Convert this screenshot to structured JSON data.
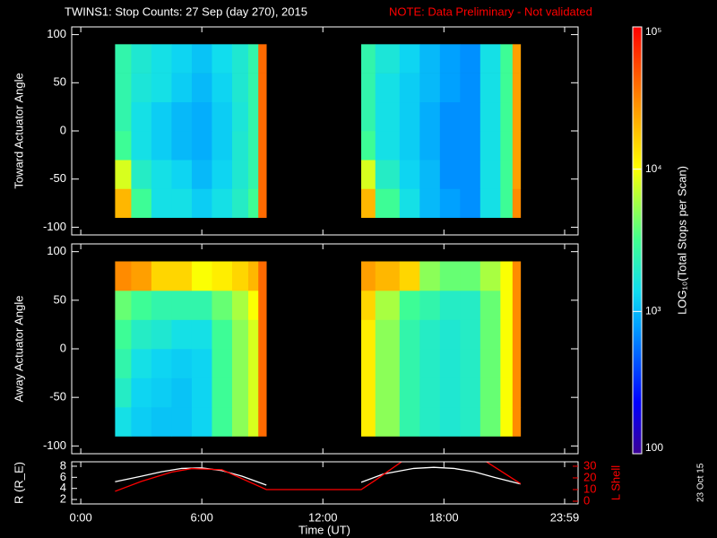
{
  "header": {
    "title": "TWINS1: Stop Counts: 27 Sep (day 270), 2015",
    "note": "NOTE: Data Preliminary - Not validated",
    "date_stamp": "23 Oct 15"
  },
  "x_axis": {
    "label": "Time (UT)",
    "xlim": [
      -0.45,
      24.65
    ],
    "xticks": [
      {
        "value": 0,
        "label": "0:00"
      },
      {
        "value": 6,
        "label": "6:00"
      },
      {
        "value": 12,
        "label": "12:00"
      },
      {
        "value": 18,
        "label": "18:00"
      },
      {
        "value": 23.983,
        "label": "23:59"
      }
    ]
  },
  "colorbar": {
    "label": "LOG₁₀(Total Stops per Scan)",
    "log": true,
    "zlim": [
      100,
      100000
    ],
    "ticks": [
      {
        "value": 100000,
        "label": "10⁵"
      },
      {
        "value": 10000,
        "label": "10⁴"
      },
      {
        "value": 1000,
        "label": "10³"
      },
      100
    ]
  },
  "chart_data": [
    {
      "type": "heatmap",
      "ylabel": "Toward Actuator Angle",
      "ylim": [
        -108,
        108
      ],
      "yticks": [
        100,
        50,
        0,
        -50,
        -100
      ],
      "x_bins": [
        1.7,
        2.5,
        3.5,
        4.5,
        5.5,
        6.5,
        7.5,
        8.3,
        8.8,
        9.2,
        13.9,
        14.6,
        15.8,
        16.8,
        17.8,
        18.8,
        19.8,
        20.8,
        21.4,
        21.8
      ],
      "y_bins": [
        -90,
        -60,
        -30,
        0,
        30,
        60,
        90
      ],
      "z": [
        [
          20000,
          3000,
          1500,
          1500,
          1200,
          1500,
          2000,
          3000,
          40000,
          null,
          20000,
          3000,
          1500,
          1000,
          800,
          700,
          1500,
          3000,
          30000
        ],
        [
          8000,
          2000,
          1500,
          1300,
          1000,
          1300,
          1800,
          2500,
          40000,
          null,
          8000,
          2000,
          1300,
          1000,
          700,
          700,
          1500,
          3000,
          25000
        ],
        [
          3000,
          1500,
          1200,
          1000,
          900,
          1200,
          1800,
          2500,
          40000,
          null,
          3000,
          1500,
          1200,
          900,
          700,
          700,
          1500,
          3000,
          25000
        ],
        [
          2500,
          1500,
          1200,
          1000,
          900,
          1200,
          1700,
          2500,
          40000,
          null,
          2500,
          1500,
          1200,
          900,
          700,
          700,
          1500,
          3000,
          25000
        ],
        [
          2500,
          1700,
          1500,
          1200,
          1000,
          1300,
          1800,
          2500,
          40000,
          null,
          2500,
          1500,
          1200,
          1000,
          800,
          700,
          1500,
          3000,
          25000
        ],
        [
          2500,
          1800,
          1500,
          1300,
          1100,
          1400,
          1800,
          2500,
          40000,
          null,
          2500,
          1700,
          1300,
          1000,
          800,
          700,
          1500,
          3000,
          25000
        ]
      ]
    },
    {
      "type": "heatmap",
      "ylabel": "Away Actuator Angle",
      "ylim": [
        -108,
        108
      ],
      "yticks": [
        100,
        50,
        0,
        -50,
        -100
      ],
      "x_bins": [
        1.7,
        2.5,
        3.5,
        4.5,
        5.5,
        6.5,
        7.5,
        8.3,
        8.8,
        9.2,
        13.9,
        14.6,
        15.8,
        16.8,
        17.8,
        18.8,
        19.8,
        20.8,
        21.4,
        21.8
      ],
      "y_bins": [
        -90,
        -60,
        -30,
        0,
        30,
        60,
        90
      ],
      "z": [
        [
          1500,
          1200,
          1100,
          1100,
          1300,
          3000,
          5000,
          8000,
          40000,
          null,
          12000,
          5000,
          2500,
          2000,
          1800,
          2000,
          4000,
          10000,
          30000
        ],
        [
          2000,
          1300,
          1200,
          1100,
          1300,
          3000,
          5000,
          8000,
          40000,
          null,
          12000,
          5000,
          2500,
          2000,
          1800,
          2000,
          4000,
          10000,
          30000
        ],
        [
          2500,
          1500,
          1300,
          1200,
          1300,
          3000,
          5000,
          8000,
          40000,
          null,
          12000,
          5000,
          2500,
          2000,
          1800,
          2000,
          4000,
          10000,
          30000
        ],
        [
          3000,
          2000,
          1800,
          1500,
          1500,
          3000,
          5000,
          8000,
          40000,
          null,
          12000,
          5000,
          2500,
          2000,
          1800,
          2000,
          4000,
          10000,
          30000
        ],
        [
          4000,
          3000,
          2500,
          2500,
          2500,
          4000,
          6000,
          10000,
          40000,
          null,
          15000,
          6000,
          3000,
          2500,
          2000,
          2000,
          4000,
          10000,
          30000
        ],
        [
          30000,
          25000,
          15000,
          15000,
          10000,
          12000,
          15000,
          20000,
          40000,
          null,
          25000,
          20000,
          15000,
          5000,
          4000,
          4000,
          6000,
          10000,
          30000
        ]
      ]
    },
    {
      "type": "line",
      "ylabel": "R (R_E)",
      "ylim": [
        1.2,
        8.8
      ],
      "yticks": [
        2,
        4,
        6,
        8
      ],
      "y2label": "L Shell",
      "y2lim": [
        -2.3,
        33.8
      ],
      "y2ticks": [
        0,
        10,
        20,
        30
      ],
      "series": [
        {
          "color": "#ffffff",
          "x": [
            1.7,
            3,
            4,
            5,
            6,
            7,
            8,
            9.2,
            null,
            13.9,
            15,
            16.5,
            17.5,
            18.5,
            19.5,
            20.5,
            21.8
          ],
          "values": [
            5.2,
            6.2,
            7.0,
            7.6,
            7.7,
            7.2,
            6.2,
            4.6,
            null,
            5.1,
            6.6,
            7.6,
            7.8,
            7.6,
            7.0,
            6.0,
            4.8
          ]
        },
        {
          "color": "#ff0000",
          "axis": "y2",
          "x": [
            1.7,
            3,
            4.5,
            5.5,
            7,
            9.2,
            13.9,
            14.6,
            16,
            20,
            21.8
          ],
          "values": [
            8.5,
            17,
            25,
            28,
            27,
            10,
            10,
            18,
            35,
            35,
            15
          ]
        }
      ]
    }
  ]
}
